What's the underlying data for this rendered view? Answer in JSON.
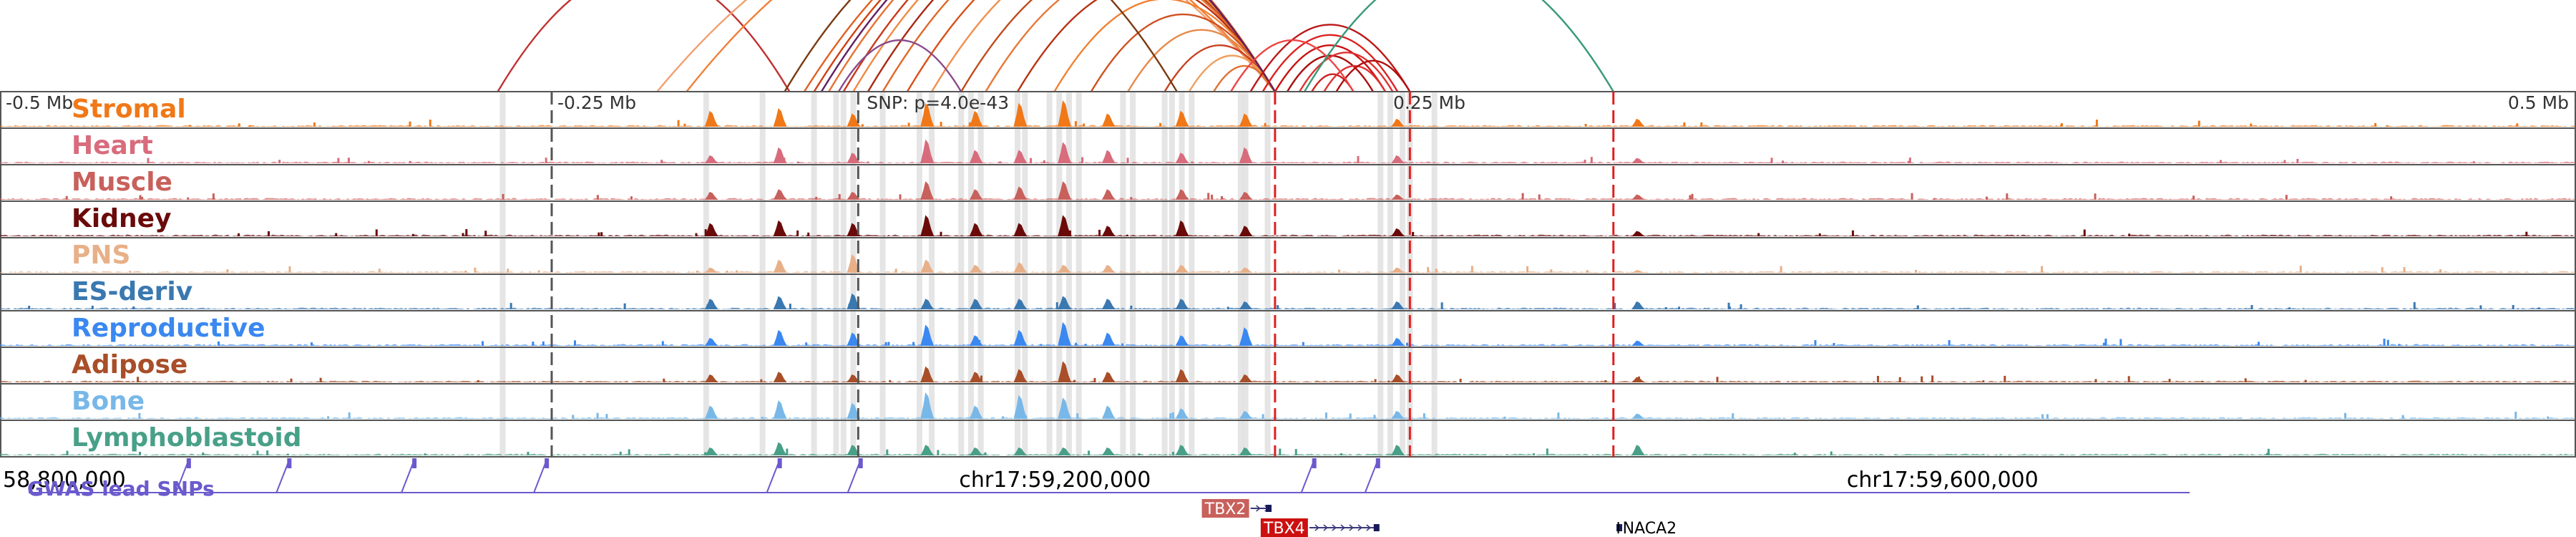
{
  "chart_data": {
    "type": "area",
    "region": {
      "chrom": "chr17",
      "start": 58780000,
      "end": 59830000
    },
    "snp": {
      "position": 59130000,
      "label": "SNP: p=4.0e-43"
    },
    "scale_labels": [
      {
        "pos": 58780000,
        "text": "-0.5 Mb",
        "anchor": "start"
      },
      {
        "pos": 59005000,
        "text": "-0.25 Mb",
        "anchor": "start"
      },
      {
        "pos": 59380000,
        "text": "0.25 Mb",
        "anchor": "end"
      },
      {
        "pos": 59830000,
        "text": "0.5 Mb",
        "anchor": "end"
      }
    ],
    "coordinate_labels": [
      {
        "pos": 58780000,
        "text": "58,800,000"
      },
      {
        "pos": 59170000,
        "text": "chr17:59,200,000"
      },
      {
        "pos": 59532000,
        "text": "chr17:59,600,000"
      }
    ],
    "tracks": [
      {
        "name": "Stromal",
        "color": "#f07818"
      },
      {
        "name": "Heart",
        "color": "#d86c7c"
      },
      {
        "name": "Muscle",
        "color": "#c8605c"
      },
      {
        "name": "Kidney",
        "color": "#6a0a0a"
      },
      {
        "name": "PNS",
        "color": "#e8b088"
      },
      {
        "name": "ES-deriv",
        "color": "#3a78b0"
      },
      {
        "name": "Reproductive",
        "color": "#3a88f0"
      },
      {
        "name": "Adipose",
        "color": "#a84e28"
      },
      {
        "name": "Bone",
        "color": "#78b8e8"
      },
      {
        "name": "Lymphoblastoid",
        "color": "#48a088"
      }
    ],
    "peaks": [
      {
        "pos": 59070000,
        "height": [
          0.6,
          0.3,
          0.3,
          0.5,
          0.2,
          0.4,
          0.3,
          0.3,
          0.5,
          0.3
        ]
      },
      {
        "pos": 59098000,
        "height": [
          0.7,
          0.6,
          0.4,
          0.6,
          0.5,
          0.5,
          0.6,
          0.4,
          0.7,
          0.5
        ]
      },
      {
        "pos": 59128000,
        "height": [
          0.5,
          0.4,
          0.3,
          0.5,
          0.7,
          0.6,
          0.5,
          0.3,
          0.6,
          0.4
        ]
      },
      {
        "pos": 59158000,
        "height": [
          0.9,
          0.9,
          0.7,
          0.8,
          0.5,
          0.4,
          0.8,
          0.6,
          1.0,
          0.4
        ]
      },
      {
        "pos": 59178000,
        "height": [
          0.6,
          0.5,
          0.4,
          0.5,
          0.3,
          0.4,
          0.4,
          0.4,
          0.5,
          0.3
        ]
      },
      {
        "pos": 59196000,
        "height": [
          0.9,
          0.5,
          0.5,
          0.5,
          0.4,
          0.4,
          0.6,
          0.5,
          0.9,
          0.3
        ]
      },
      {
        "pos": 59214000,
        "height": [
          1.0,
          0.8,
          0.7,
          0.8,
          0.3,
          0.5,
          0.9,
          0.8,
          0.8,
          0.3
        ]
      },
      {
        "pos": 59232000,
        "height": [
          0.5,
          0.5,
          0.4,
          0.4,
          0.3,
          0.4,
          0.5,
          0.4,
          0.5,
          0.3
        ]
      },
      {
        "pos": 59262000,
        "height": [
          0.6,
          0.4,
          0.4,
          0.6,
          0.3,
          0.4,
          0.4,
          0.5,
          0.4,
          0.4
        ]
      },
      {
        "pos": 59288000,
        "height": [
          0.5,
          0.6,
          0.3,
          0.4,
          0.2,
          0.3,
          0.7,
          0.3,
          0.3,
          0.3
        ]
      },
      {
        "pos": 59350000,
        "height": [
          0.3,
          0.3,
          0.2,
          0.3,
          0.2,
          0.3,
          0.3,
          0.3,
          0.3,
          0.4
        ]
      },
      {
        "pos": 59448000,
        "height": [
          0.3,
          0.2,
          0.2,
          0.2,
          0.1,
          0.3,
          0.2,
          0.2,
          0.2,
          0.4
        ]
      }
    ],
    "highlight_regions": [
      58985000,
      59068000,
      59091000,
      59112000,
      59121000,
      59124000,
      59128000,
      59140000,
      59155000,
      59160000,
      59172000,
      59176000,
      59180000,
      59195000,
      59198000,
      59208000,
      59212000,
      59216000,
      59220000,
      59238000,
      59242000,
      59255000,
      59258000,
      59262000,
      59266000,
      59286000,
      59288000,
      59297000,
      59343000,
      59347000,
      59352000,
      59355000,
      59365000
    ],
    "dashed_lines": [
      {
        "pos": 59005000,
        "color": "#555555"
      },
      {
        "pos": 59130000,
        "color": "#555555"
      },
      {
        "pos": 59300000,
        "color": "#dd2020"
      },
      {
        "pos": 59355000,
        "color": "#dd2020"
      },
      {
        "pos": 59438000,
        "color": "#dd2020"
      }
    ],
    "gwas": {
      "label": "GWAS lead SNPs",
      "snps": [
        58857000,
        58898000,
        58949000,
        59003000,
        59098000,
        59131000,
        59316000,
        59342000
      ]
    },
    "genes": [
      {
        "name": "TBX2",
        "start": 59290000,
        "end": 59298000,
        "strand": "+",
        "row": 0,
        "color": "#c8605c",
        "label_side": "left"
      },
      {
        "name": "TBX4",
        "start": 59314000,
        "end": 59342000,
        "strand": "+",
        "row": 1,
        "color": "#cc1010",
        "label_side": "left"
      },
      {
        "name": "NACA2",
        "start": 59440000,
        "end": 59441000,
        "strand": "-",
        "row": 1,
        "color": "#000000",
        "label_side": "right"
      }
    ],
    "loops": [
      {
        "a": 58983000,
        "b": 59102000,
        "color": "#c03030"
      },
      {
        "a": 59048000,
        "b": 59300000,
        "color": "#f0a070"
      },
      {
        "a": 59060000,
        "b": 59300000,
        "color": "#f08038"
      },
      {
        "a": 59108000,
        "b": 59300000,
        "color": "#e06020"
      },
      {
        "a": 59112000,
        "b": 59300000,
        "color": "#d04010"
      },
      {
        "a": 59118000,
        "b": 59300000,
        "color": "#e87030"
      },
      {
        "a": 59124000,
        "b": 59300000,
        "color": "#c83818"
      },
      {
        "a": 59128000,
        "b": 59300000,
        "color": "#f08840"
      },
      {
        "a": 59134000,
        "b": 59300000,
        "color": "#a82810"
      },
      {
        "a": 59140000,
        "b": 59300000,
        "color": "#e06828"
      },
      {
        "a": 59150000,
        "b": 59300000,
        "color": "#d85018"
      },
      {
        "a": 59160000,
        "b": 59300000,
        "color": "#f09050"
      },
      {
        "a": 59172000,
        "b": 59300000,
        "color": "#c04818"
      },
      {
        "a": 59182000,
        "b": 59300000,
        "color": "#e87838"
      },
      {
        "a": 59195000,
        "b": 59300000,
        "color": "#b83010"
      },
      {
        "a": 59210000,
        "b": 59300000,
        "color": "#f08030"
      },
      {
        "a": 59225000,
        "b": 59300000,
        "color": "#d05020"
      },
      {
        "a": 59240000,
        "b": 59300000,
        "color": "#e88848"
      },
      {
        "a": 59255000,
        "b": 59300000,
        "color": "#c84020"
      },
      {
        "a": 59265000,
        "b": 59300000,
        "color": "#f0a060"
      },
      {
        "a": 59275000,
        "b": 59300000,
        "color": "#e07030"
      },
      {
        "a": 59100000,
        "b": 59260000,
        "color": "#7a3a10"
      },
      {
        "a": 59115000,
        "b": 59300000,
        "color": "#602060"
      },
      {
        "a": 59122000,
        "b": 59172000,
        "color": "#8a4a8a"
      },
      {
        "a": 59300000,
        "b": 59345000,
        "color": "#cc1010"
      },
      {
        "a": 59295000,
        "b": 59350000,
        "color": "#dd2020"
      },
      {
        "a": 59305000,
        "b": 59340000,
        "color": "#aa1010"
      },
      {
        "a": 59310000,
        "b": 59348000,
        "color": "#e03030"
      },
      {
        "a": 59290000,
        "b": 59355000,
        "color": "#bb1818"
      },
      {
        "a": 59315000,
        "b": 59332000,
        "color": "#cc2020"
      },
      {
        "a": 59320000,
        "b": 59345000,
        "color": "#dd3030"
      },
      {
        "a": 59325000,
        "b": 59355000,
        "color": "#b01010"
      },
      {
        "a": 59282000,
        "b": 59332000,
        "color": "#ee4444"
      },
      {
        "a": 59312000,
        "b": 59438000,
        "color": "#3a9a78"
      }
    ]
  }
}
